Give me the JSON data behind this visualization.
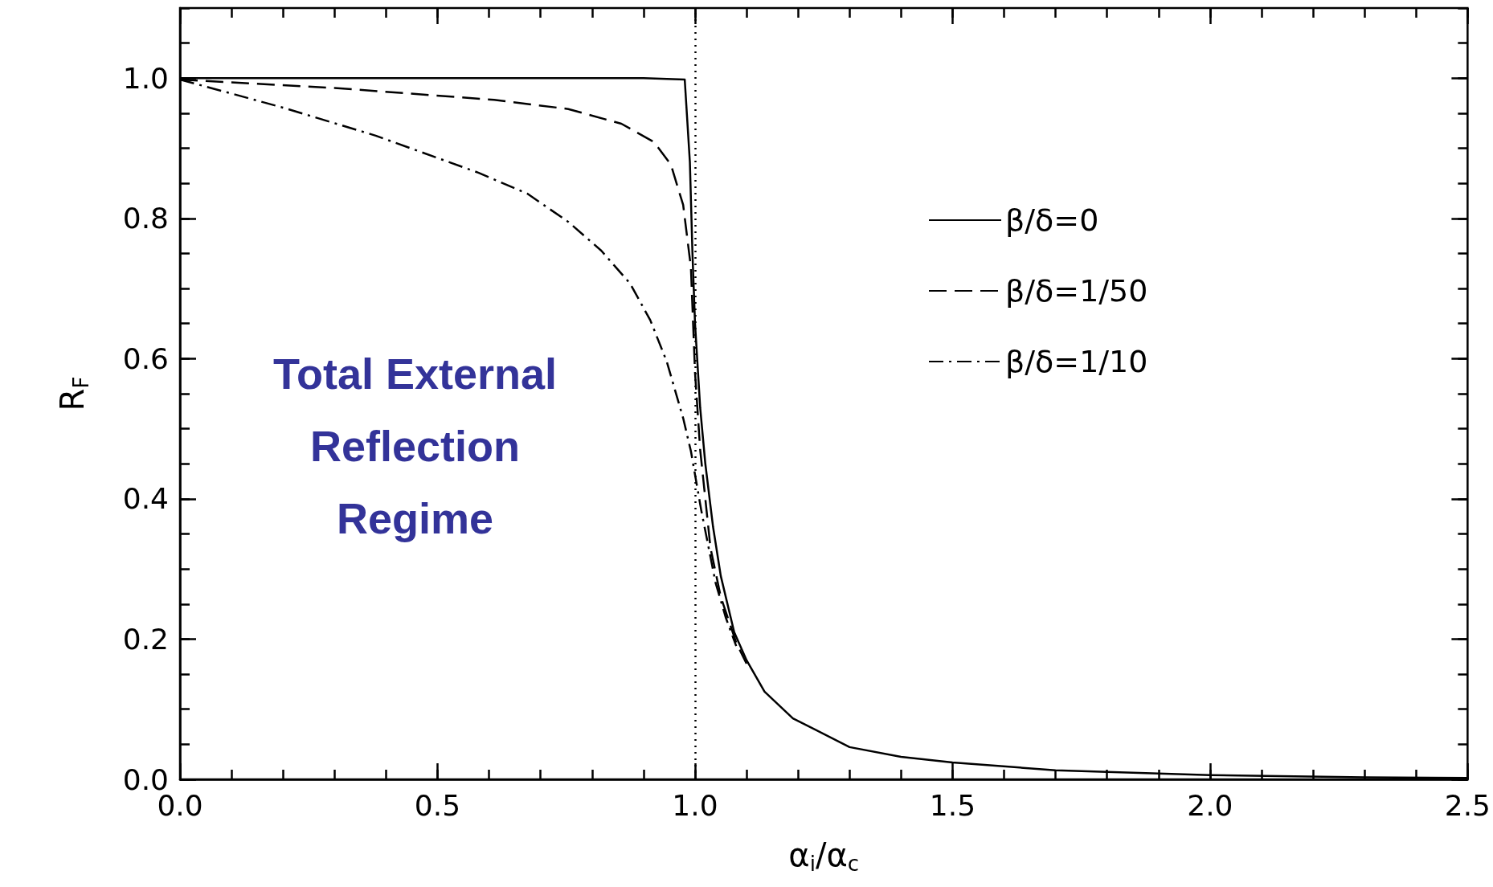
{
  "chart_data": {
    "type": "line",
    "xlabel": "α$_{i}$/α$_{c}$",
    "ylabel": "R$_{F}$",
    "annotations": [
      "Total External Reflection Regime"
    ],
    "xlim": [
      0,
      2.5
    ],
    "xticks": [
      {
        "value": 0,
        "label": "0.0"
      },
      {
        "value": 0.5,
        "label": "0.5"
      },
      {
        "value": 1,
        "label": "1.0"
      },
      {
        "value": 1.5,
        "label": "1.5"
      },
      {
        "value": 2,
        "label": "2.0"
      },
      {
        "value": 2.5,
        "label": "2.5"
      }
    ],
    "ylim": [
      0,
      1.1
    ],
    "yticks": [
      {
        "value": 0,
        "label": "0.0"
      },
      {
        "value": 0.2,
        "label": "0.2"
      },
      {
        "value": 0.4,
        "label": "0.4"
      },
      {
        "value": 0.6,
        "label": "0.6"
      },
      {
        "value": 0.8,
        "label": "0.8"
      },
      {
        "value": 1,
        "label": "1.0"
      }
    ],
    "grid": false,
    "legend": "right",
    "marker": "none",
    "ref_lines": [
      {
        "axis": "x",
        "value": 1,
        "line_style": "dotted",
        "color": "#000000"
      }
    ],
    "series": [
      {
        "name": "β/δ=0",
        "color": "#000000",
        "line_style": "solid",
        "x": [
          0,
          0.5,
          0.9,
          0.98,
          0.99,
          0.995,
          1.0,
          1.01,
          1.02,
          1.035,
          1.05,
          1.076,
          1.1,
          1.135,
          1.19,
          1.3,
          1.4,
          1.5,
          1.7,
          2.0,
          2.3,
          2.5
        ],
        "values": [
          1,
          1,
          1,
          0.998,
          0.88,
          0.75,
          0.65,
          0.53,
          0.45,
          0.36,
          0.29,
          0.21,
          0.17,
          0.125,
          0.087,
          0.046,
          0.032,
          0.024,
          0.013,
          0.006,
          0.003,
          0.002
        ]
      },
      {
        "name": "β/δ=1/50",
        "color": "#000000",
        "line_style": "dashed",
        "x": [
          0,
          0.3,
          0.61,
          0.754,
          0.857,
          0.92,
          0.953,
          0.977,
          0.992,
          1.0,
          1.01,
          1.03,
          1.05,
          1.08,
          1.1
        ],
        "values": [
          0.998,
          0.986,
          0.969,
          0.956,
          0.935,
          0.909,
          0.877,
          0.819,
          0.73,
          0.58,
          0.47,
          0.33,
          0.26,
          0.195,
          0.165
        ]
      },
      {
        "name": "β/δ=1/10",
        "color": "#000000",
        "line_style": "dashdot",
        "x": [
          0,
          0.2,
          0.38,
          0.58,
          0.675,
          0.754,
          0.818,
          0.874,
          0.913,
          0.945,
          0.977,
          0.992,
          1.012,
          1.04,
          1.06,
          1.08
        ],
        "values": [
          0.998,
          0.958,
          0.918,
          0.865,
          0.835,
          0.795,
          0.754,
          0.707,
          0.655,
          0.596,
          0.515,
          0.468,
          0.384,
          0.28,
          0.23,
          0.19
        ]
      }
    ]
  }
}
